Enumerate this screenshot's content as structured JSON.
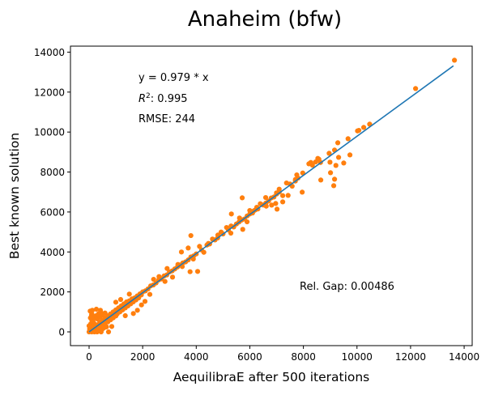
{
  "chart_data": {
    "type": "scatter",
    "title": "Anaheim (bfw)",
    "xlabel": "AequilibraE after 500 iterations",
    "ylabel": "Best known solution",
    "xlim": [
      -695,
      14300
    ],
    "ylim": [
      -688,
      14300
    ],
    "xticks": [
      0,
      2000,
      4000,
      6000,
      8000,
      10000,
      12000,
      14000
    ],
    "yticks": [
      0,
      2000,
      4000,
      6000,
      8000,
      10000,
      12000,
      14000
    ],
    "xtick_labels": [
      "0",
      "2000",
      "4000",
      "6000",
      "8000",
      "10000",
      "12000",
      "14000"
    ],
    "ytick_labels": [
      "0",
      "2000",
      "4000",
      "6000",
      "8000",
      "10000",
      "12000",
      "14000"
    ],
    "grid": false,
    "colors": {
      "points": "#ff7f0e",
      "fit_line": "#1f77b4"
    },
    "fit": {
      "slope": 0.979,
      "x_range": [
        0,
        13600
      ]
    },
    "annotations": {
      "equation": "y = 0.979 * x",
      "r2_label": "R",
      "r2_sup": "2",
      "r2_value": ":  0.995",
      "rmse": "RMSE: 244",
      "rel_gap": "Rel. Gap: 0.00486"
    },
    "points": [
      [
        13638,
        13595
      ],
      [
        12187,
        12177
      ],
      [
        10473,
        10395
      ],
      [
        10251,
        10233
      ],
      [
        10070,
        10085
      ],
      [
        10020,
        10058
      ],
      [
        9667,
        9666
      ],
      [
        9737,
        8856
      ],
      [
        9284,
        9464
      ],
      [
        9163,
        9099
      ],
      [
        9314,
        8735
      ],
      [
        9213,
        8330
      ],
      [
        9505,
        8451
      ],
      [
        8961,
        8937
      ],
      [
        8992,
        8492
      ],
      [
        9012,
        7965
      ],
      [
        9163,
        7641
      ],
      [
        9132,
        7317
      ],
      [
        8649,
        7600
      ],
      [
        8538,
        8680
      ],
      [
        8578,
        8640
      ],
      [
        8457,
        8505
      ],
      [
        8336,
        8343
      ],
      [
        8205,
        8410
      ],
      [
        8276,
        8478
      ],
      [
        8639,
        8478
      ],
      [
        7975,
        7951
      ],
      [
        7753,
        7857
      ],
      [
        7955,
        6993
      ],
      [
        7702,
        7627
      ],
      [
        7581,
        7290
      ],
      [
        7369,
        7452
      ],
      [
        7429,
        6831
      ],
      [
        7228,
        6507
      ],
      [
        7228,
        6817
      ],
      [
        7096,
        7141
      ],
      [
        6995,
        6953
      ],
      [
        7016,
        6142
      ],
      [
        6965,
        6426
      ],
      [
        6814,
        6345
      ],
      [
        6613,
        6291
      ],
      [
        6592,
        6723
      ],
      [
        6391,
        6412
      ],
      [
        6260,
        6237
      ],
      [
        6139,
        6048
      ],
      [
        5998,
        6075
      ],
      [
        5716,
        6709
      ],
      [
        5736,
        5130
      ],
      [
        5897,
        5508
      ],
      [
        5615,
        5697
      ],
      [
        5312,
        5900
      ],
      [
        5292,
        4941
      ],
      [
        5131,
        5224
      ],
      [
        4929,
        4995
      ],
      [
        4808,
        4846
      ],
      [
        4606,
        4644
      ],
      [
        4455,
        4428
      ],
      [
        4284,
        3982
      ],
      [
        4123,
        4279
      ],
      [
        4052,
        3024
      ],
      [
        3800,
        4819
      ],
      [
        3770,
        3010
      ],
      [
        3891,
        3645
      ],
      [
        3700,
        4198
      ],
      [
        3447,
        3996
      ],
      [
        3478,
        3267
      ],
      [
        3115,
        2740
      ],
      [
        3316,
        3375
      ],
      [
        2913,
        3172
      ],
      [
        2833,
        2524
      ],
      [
        2611,
        2767
      ],
      [
        2409,
        2632
      ],
      [
        2268,
        1876
      ],
      [
        2087,
        1525
      ],
      [
        1956,
        1350
      ],
      [
        1804,
        1080
      ],
      [
        1653,
        918
      ],
      [
        1502,
        1890
      ],
      [
        1351,
        810
      ],
      [
        1179,
        1620
      ],
      [
        998,
        1485
      ],
      [
        847,
        877
      ],
      [
        726,
        0
      ],
      [
        847,
        270
      ],
      [
        40,
        1040
      ],
      [
        121,
        1080
      ],
      [
        272,
        1134
      ],
      [
        423,
        1080
      ],
      [
        91,
        837
      ],
      [
        595,
        945
      ],
      [
        50,
        100
      ],
      [
        80,
        300
      ],
      [
        120,
        50
      ],
      [
        150,
        200
      ],
      [
        200,
        400
      ],
      [
        250,
        150
      ],
      [
        300,
        350
      ],
      [
        350,
        250
      ],
      [
        400,
        500
      ],
      [
        450,
        300
      ],
      [
        500,
        600
      ],
      [
        550,
        450
      ],
      [
        600,
        700
      ],
      [
        650,
        500
      ],
      [
        700,
        800
      ],
      [
        750,
        600
      ],
      [
        800,
        900
      ],
      [
        850,
        700
      ],
      [
        900,
        1000
      ],
      [
        950,
        800
      ],
      [
        1000,
        1100
      ],
      [
        1050,
        900
      ],
      [
        1100,
        1200
      ],
      [
        1150,
        1000
      ],
      [
        1200,
        1300
      ],
      [
        1250,
        1100
      ],
      [
        1300,
        1400
      ],
      [
        1350,
        1200
      ],
      [
        1400,
        1500
      ],
      [
        1450,
        1300
      ],
      [
        1500,
        1550
      ],
      [
        1550,
        1400
      ],
      [
        1600,
        1650
      ],
      [
        1650,
        1500
      ],
      [
        1700,
        1700
      ],
      [
        1750,
        1600
      ],
      [
        1800,
        1800
      ],
      [
        1850,
        1700
      ],
      [
        1900,
        1900
      ],
      [
        1950,
        1850
      ],
      [
        2000,
        2000
      ],
      [
        2100,
        2050
      ],
      [
        2200,
        2150
      ],
      [
        2300,
        2300
      ],
      [
        2400,
        2350
      ],
      [
        2500,
        2450
      ],
      [
        2600,
        2600
      ],
      [
        2700,
        2650
      ],
      [
        2800,
        2800
      ],
      [
        2900,
        2850
      ],
      [
        3000,
        3000
      ],
      [
        3100,
        3050
      ],
      [
        3200,
        3150
      ],
      [
        3300,
        3250
      ],
      [
        3400,
        3350
      ],
      [
        3500,
        3450
      ],
      [
        3600,
        3500
      ],
      [
        3700,
        3600
      ],
      [
        3800,
        3750
      ],
      [
        3900,
        3800
      ],
      [
        4000,
        3900
      ],
      [
        4200,
        4100
      ],
      [
        4400,
        4350
      ],
      [
        4500,
        4400
      ],
      [
        4700,
        4600
      ],
      [
        4800,
        4700
      ],
      [
        5000,
        4900
      ],
      [
        5200,
        5100
      ],
      [
        5300,
        5300
      ],
      [
        5400,
        5250
      ],
      [
        5500,
        5400
      ],
      [
        5600,
        5500
      ],
      [
        5700,
        5600
      ],
      [
        5800,
        5650
      ],
      [
        5900,
        5800
      ],
      [
        6000,
        5900
      ],
      [
        6100,
        5950
      ],
      [
        6200,
        6100
      ],
      [
        6300,
        6150
      ],
      [
        6500,
        6350
      ],
      [
        6600,
        6450
      ],
      [
        6700,
        6550
      ],
      [
        6800,
        6700
      ],
      [
        6900,
        6750
      ],
      [
        7000,
        6900
      ],
      [
        7100,
        7000
      ],
      [
        7500,
        7400
      ],
      [
        7700,
        7550
      ],
      [
        7800,
        7700
      ],
      [
        0,
        0
      ],
      [
        20,
        150
      ],
      [
        60,
        50
      ],
      [
        100,
        0
      ],
      [
        150,
        100
      ],
      [
        200,
        0
      ],
      [
        250,
        50
      ],
      [
        300,
        0
      ],
      [
        350,
        100
      ],
      [
        400,
        50
      ],
      [
        450,
        0
      ],
      [
        500,
        150
      ],
      [
        30,
        250
      ],
      [
        60,
        400
      ],
      [
        100,
        600
      ],
      [
        150,
        500
      ],
      [
        200,
        700
      ],
      [
        250,
        800
      ],
      [
        300,
        650
      ],
      [
        350,
        900
      ],
      [
        400,
        750
      ],
      [
        450,
        950
      ],
      [
        500,
        850
      ],
      [
        100,
        900
      ],
      [
        50,
        700
      ],
      [
        0,
        300
      ],
      [
        600,
        300
      ],
      [
        700,
        500
      ],
      [
        550,
        200
      ],
      [
        650,
        250
      ],
      [
        800,
        600
      ],
      [
        900,
        700
      ],
      [
        1000,
        800
      ],
      [
        1100,
        1000
      ],
      [
        1200,
        1100
      ]
    ]
  }
}
